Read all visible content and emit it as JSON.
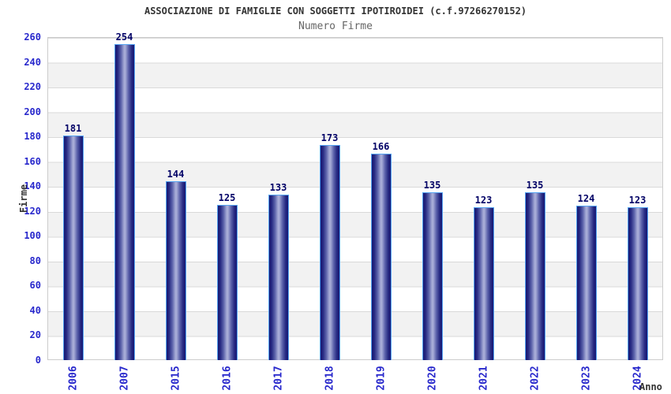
{
  "chart_data": {
    "type": "bar",
    "title": "ASSOCIAZIONE DI FAMIGLIE CON SOGGETTI IPOTIROIDEI (c.f.97266270152)",
    "subtitle": "Numero Firme",
    "categories": [
      "2006",
      "2007",
      "2015",
      "2016",
      "2017",
      "2018",
      "2019",
      "2020",
      "2021",
      "2022",
      "2023",
      "2024"
    ],
    "values": [
      181,
      254,
      144,
      125,
      133,
      173,
      166,
      135,
      123,
      135,
      124,
      123
    ],
    "xlabel": "Anno",
    "ylabel": "Firme",
    "ylim": [
      0,
      260
    ],
    "y_ticks": [
      260,
      240,
      220,
      200,
      180,
      160,
      140,
      120,
      100,
      80,
      60,
      40,
      20,
      0
    ],
    "grid": "horizontal",
    "legend": "none",
    "bar_value_labels_shown": true,
    "background_bands": "alternating white and light gray, 20-unit tall"
  },
  "colors": {
    "title": "#333333",
    "subtitle": "#666666",
    "tick_label": "#2828cc",
    "value_label": "#000066",
    "axis_label": "#333333",
    "bar_dark": "#181a74",
    "bar_light": "#a6abd6",
    "bar_border": "#55a4f2",
    "band_gray": "#f2f2f2",
    "grid_line": "#d9d9d9",
    "plot_border": "#cccccc"
  }
}
